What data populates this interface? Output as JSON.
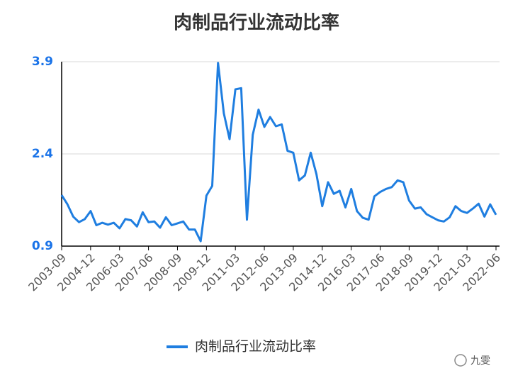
{
  "chart_data": {
    "type": "line",
    "title": "肉制品行业流动比率",
    "categories": [
      "2003-09",
      null,
      null,
      null,
      null,
      "2004-12",
      null,
      null,
      null,
      null,
      "2006-03",
      null,
      null,
      null,
      null,
      "2007-06",
      null,
      null,
      null,
      null,
      "2008-09",
      null,
      null,
      null,
      null,
      "2009-12",
      null,
      null,
      null,
      null,
      "2011-03",
      null,
      null,
      null,
      null,
      "2012-06",
      null,
      null,
      null,
      null,
      "2013-09",
      null,
      null,
      null,
      null,
      "2014-12",
      null,
      null,
      null,
      null,
      "2016-03",
      null,
      null,
      null,
      null,
      "2017-06",
      null,
      null,
      null,
      null,
      "2018-09",
      null,
      null,
      null,
      null,
      "2019-12",
      null,
      null,
      null,
      null,
      "2021-03",
      null,
      null,
      null,
      null,
      "2022-06"
    ],
    "series": [
      {
        "name": "肉制品行业流动比率",
        "color": "#1f7ee0",
        "values": [
          1.73,
          1.58,
          1.38,
          1.29,
          1.34,
          1.47,
          1.24,
          1.28,
          1.25,
          1.28,
          1.19,
          1.34,
          1.32,
          1.22,
          1.45,
          1.29,
          1.3,
          1.2,
          1.37,
          1.24,
          1.27,
          1.3,
          1.17,
          1.17,
          0.98,
          1.72,
          1.88,
          3.88,
          3.06,
          2.64,
          3.45,
          3.47,
          1.33,
          2.71,
          3.12,
          2.84,
          3.0,
          2.85,
          2.88,
          2.45,
          2.42,
          1.97,
          2.05,
          2.42,
          2.07,
          1.55,
          1.94,
          1.75,
          1.8,
          1.53,
          1.83,
          1.47,
          1.36,
          1.33,
          1.71,
          1.78,
          1.83,
          1.86,
          1.97,
          1.94,
          1.64,
          1.51,
          1.53,
          1.42,
          1.37,
          1.32,
          1.3,
          1.37,
          1.55,
          1.47,
          1.44,
          1.51,
          1.59,
          1.38,
          1.58,
          1.41
        ]
      }
    ],
    "ylim": [
      0.9,
      3.9
    ],
    "yticks": [
      0.9,
      2.4,
      3.9
    ],
    "grid": true,
    "legend": "bottom",
    "watermark": "九雯"
  }
}
